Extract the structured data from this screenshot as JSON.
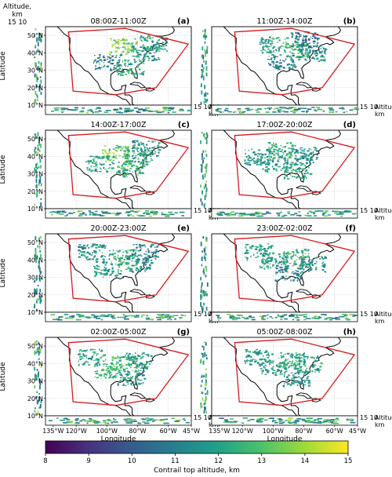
{
  "figure": {
    "corner_label": {
      "line1": "Altitude,",
      "line2": "km",
      "ticks": "15 10"
    }
  },
  "colorbar": {
    "label": "Contrail top altitude, km",
    "range": [
      8,
      15
    ],
    "ticks": [
      "8",
      "9",
      "10",
      "11",
      "12",
      "13",
      "14",
      "15"
    ]
  },
  "chart_data": [
    {
      "type": "heatmap",
      "panel": "(a)",
      "title": "08:00Z-11:00Z",
      "ylabel": "Latitude",
      "xlabel": "",
      "yticks": [
        "10°N",
        "20°N",
        "30°N",
        "40°N",
        "50°N"
      ],
      "xticks": [],
      "side_label": {
        "ticks": "15 10",
        "text": "Altitude, km"
      },
      "xlim": [
        -140,
        -45
      ],
      "ylim": [
        10,
        55
      ],
      "clusters": [
        {
          "lon": -90,
          "lat": 44,
          "alt": 13.5
        },
        {
          "lon": -75,
          "lat": 40,
          "alt": 11.5
        },
        {
          "lon": -100,
          "lat": 35,
          "alt": 11.0
        },
        {
          "lon": -85,
          "lat": 32,
          "alt": 12.0
        },
        {
          "lon": -70,
          "lat": 46,
          "alt": 12.0
        }
      ]
    },
    {
      "type": "heatmap",
      "panel": "(b)",
      "title": "11:00Z-14:00Z",
      "ylabel": "",
      "xlabel": "",
      "yticks": [],
      "xticks": [],
      "side_label": {
        "ticks": "15 10",
        "text": "Altitude, km"
      },
      "xlim": [
        -140,
        -45
      ],
      "ylim": [
        10,
        55
      ],
      "clusters": [
        {
          "lon": -85,
          "lat": 42,
          "alt": 12.5
        },
        {
          "lon": -75,
          "lat": 40,
          "alt": 11.5
        },
        {
          "lon": -95,
          "lat": 35,
          "alt": 11.0
        },
        {
          "lon": -80,
          "lat": 48,
          "alt": 10.5
        },
        {
          "lon": -100,
          "lat": 45,
          "alt": 12.0
        }
      ]
    },
    {
      "type": "heatmap",
      "panel": "(c)",
      "title": "14:00Z-17:00Z",
      "ylabel": "Latitude",
      "xlabel": "",
      "yticks": [
        "10°N",
        "20°N",
        "30°N",
        "40°N",
        "50°N"
      ],
      "xticks": [],
      "side_label": {
        "ticks": "15 10",
        "text": "Altitude, km"
      },
      "xlim": [
        -140,
        -45
      ],
      "ylim": [
        10,
        55
      ],
      "clusters": [
        {
          "lon": -95,
          "lat": 42,
          "alt": 13.5
        },
        {
          "lon": -80,
          "lat": 40,
          "alt": 12.5
        },
        {
          "lon": -105,
          "lat": 36,
          "alt": 12.0
        },
        {
          "lon": -85,
          "lat": 33,
          "alt": 12.5
        },
        {
          "lon": -75,
          "lat": 45,
          "alt": 11.5
        }
      ]
    },
    {
      "type": "heatmap",
      "panel": "(d)",
      "title": "17:00Z-20:00Z",
      "ylabel": "",
      "xlabel": "",
      "yticks": [],
      "xticks": [],
      "side_label": {
        "ticks": "15 10",
        "text": "Altitude, km"
      },
      "xlim": [
        -140,
        -45
      ],
      "ylim": [
        10,
        55
      ],
      "clusters": [
        {
          "lon": -95,
          "lat": 44,
          "alt": 12.5
        },
        {
          "lon": -80,
          "lat": 41,
          "alt": 11.5
        },
        {
          "lon": -100,
          "lat": 36,
          "alt": 12.0
        },
        {
          "lon": -85,
          "lat": 32,
          "alt": 12.0
        },
        {
          "lon": -110,
          "lat": 40,
          "alt": 11.5
        }
      ]
    },
    {
      "type": "heatmap",
      "panel": "(e)",
      "title": "20:00Z-23:00Z",
      "ylabel": "Latitude",
      "xlabel": "",
      "yticks": [
        "10°N",
        "20°N",
        "30°N",
        "40°N",
        "50°N"
      ],
      "xticks": [],
      "side_label": {
        "ticks": "15 10",
        "text": "Altitude, km"
      },
      "xlim": [
        -140,
        -45
      ],
      "ylim": [
        10,
        55
      ],
      "clusters": [
        {
          "lon": -90,
          "lat": 42,
          "alt": 12.5
        },
        {
          "lon": -80,
          "lat": 38,
          "alt": 11.5
        },
        {
          "lon": -100,
          "lat": 35,
          "alt": 12.0
        },
        {
          "lon": -110,
          "lat": 45,
          "alt": 11.5
        },
        {
          "lon": -75,
          "lat": 45,
          "alt": 11.0
        }
      ]
    },
    {
      "type": "heatmap",
      "panel": "(f)",
      "title": "23:00Z-02:00Z",
      "ylabel": "",
      "xlabel": "",
      "yticks": [],
      "xticks": [],
      "side_label": {
        "ticks": "15 10",
        "text": "Altitude, km"
      },
      "xlim": [
        -140,
        -45
      ],
      "ylim": [
        10,
        55
      ],
      "clusters": [
        {
          "lon": -85,
          "lat": 42,
          "alt": 12.5
        },
        {
          "lon": -75,
          "lat": 38,
          "alt": 11.5
        },
        {
          "lon": -100,
          "lat": 40,
          "alt": 12.0
        },
        {
          "lon": -110,
          "lat": 45,
          "alt": 12.0
        },
        {
          "lon": -90,
          "lat": 33,
          "alt": 11.0
        }
      ]
    },
    {
      "type": "heatmap",
      "panel": "(g)",
      "title": "02:00Z-05:00Z",
      "ylabel": "Latitude",
      "xlabel": "Longitude",
      "yticks": [
        "10°N",
        "20°N",
        "30°N",
        "40°N",
        "50°N"
      ],
      "xticks": [
        "135°W",
        "120°W",
        "100°W",
        "80°W",
        "60°W",
        "45°W"
      ],
      "side_label": {
        "ticks": "15 10",
        "text": "Altitude, km"
      },
      "xlim": [
        -140,
        -45
      ],
      "ylim": [
        10,
        55
      ],
      "clusters": [
        {
          "lon": -90,
          "lat": 40,
          "alt": 13.0
        },
        {
          "lon": -80,
          "lat": 42,
          "alt": 12.0
        },
        {
          "lon": -100,
          "lat": 36,
          "alt": 12.5
        },
        {
          "lon": -110,
          "lat": 44,
          "alt": 12.0
        },
        {
          "lon": -85,
          "lat": 32,
          "alt": 11.5
        }
      ]
    },
    {
      "type": "heatmap",
      "panel": "(h)",
      "title": "05:00Z-08:00Z",
      "ylabel": "",
      "xlabel": "Longitude",
      "yticks": [],
      "xticks": [
        "135°W",
        "120°W",
        "100°W",
        "80°W",
        "60°W",
        "45°W"
      ],
      "side_label": {
        "ticks": "15 10",
        "text": "Altitude, km"
      },
      "xlim": [
        -140,
        -45
      ],
      "ylim": [
        10,
        55
      ],
      "clusters": [
        {
          "lon": -88,
          "lat": 42,
          "alt": 12.5
        },
        {
          "lon": -78,
          "lat": 40,
          "alt": 12.0
        },
        {
          "lon": -100,
          "lat": 38,
          "alt": 12.0
        },
        {
          "lon": -110,
          "lat": 44,
          "alt": 12.0
        },
        {
          "lon": -85,
          "lat": 32,
          "alt": 11.5
        }
      ]
    }
  ]
}
